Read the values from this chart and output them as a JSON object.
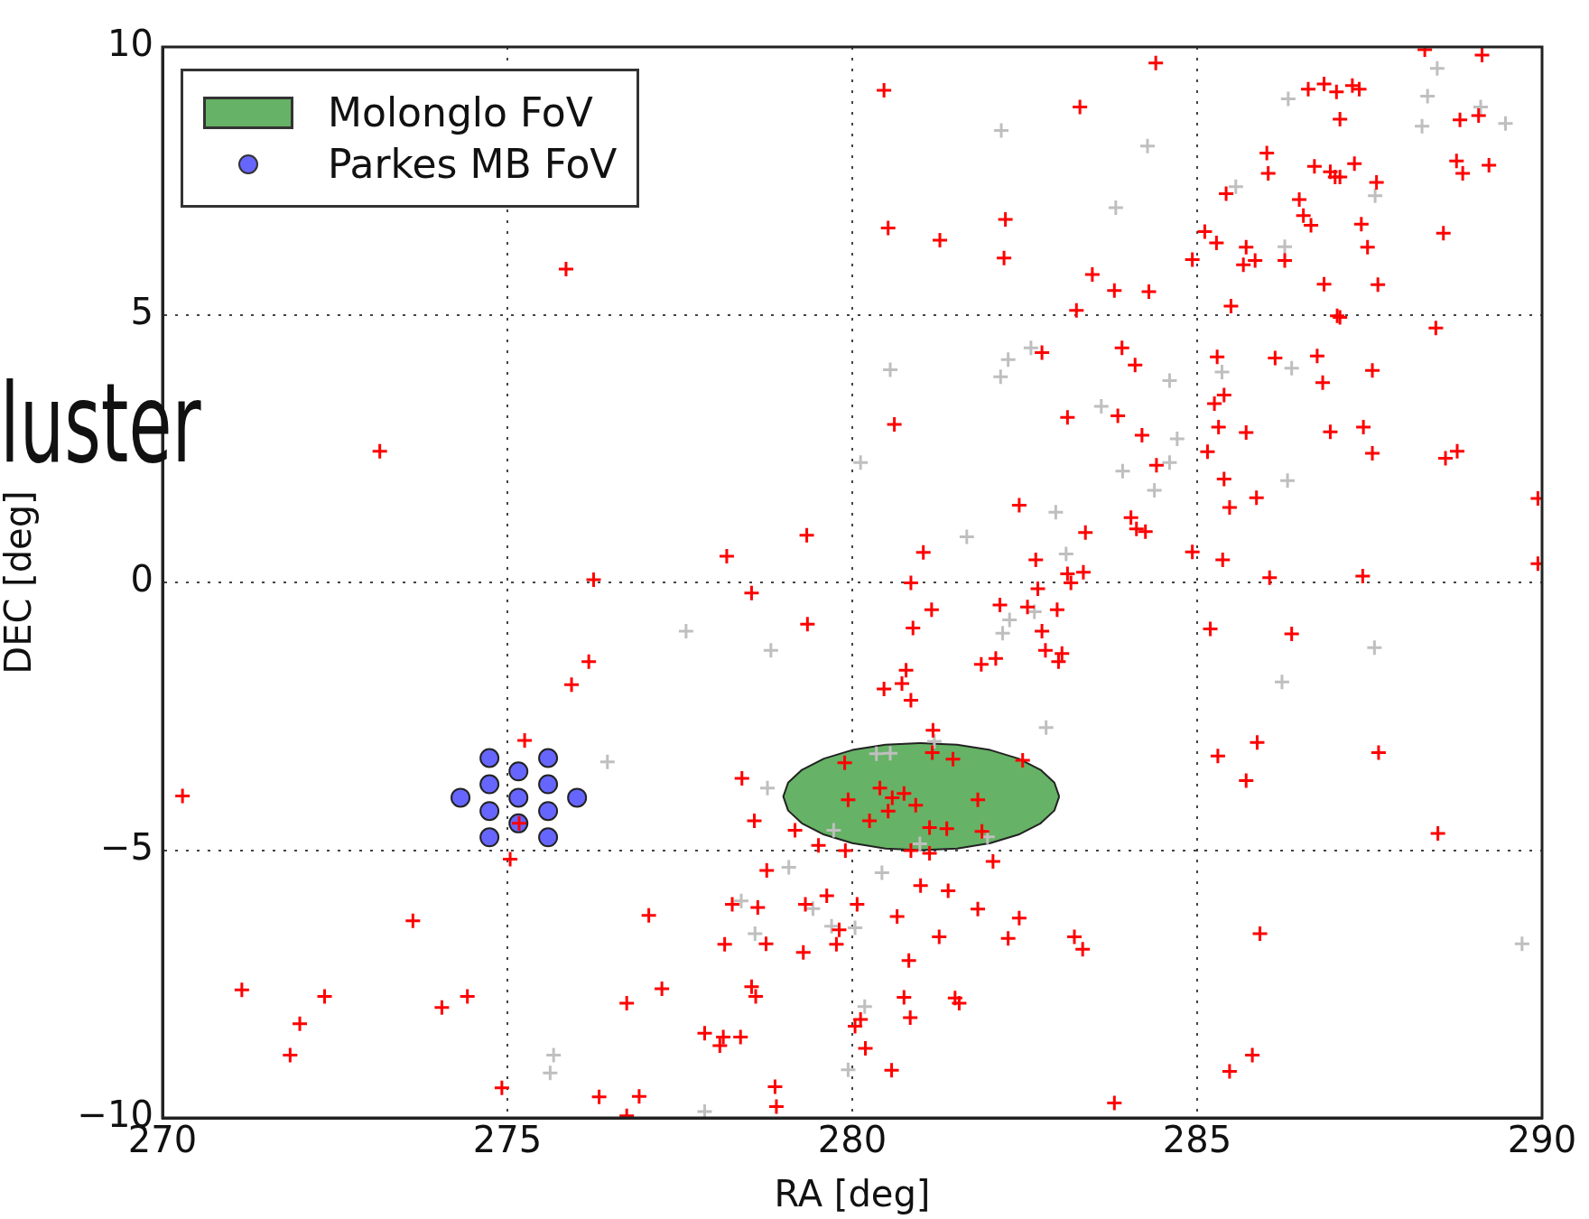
{
  "chart_data": {
    "type": "scatter",
    "xlabel": "RA [deg]",
    "ylabel": "DEC [deg]",
    "annotations": [
      "luster"
    ],
    "xlim": [
      270,
      290
    ],
    "xticks": [
      270,
      275,
      280,
      285,
      290
    ],
    "ylim": [
      -10,
      10
    ],
    "yticks": [
      {
        "value": -10,
        "label": "−10"
      },
      {
        "value": -5,
        "label": "−5"
      },
      0,
      5,
      10
    ],
    "grid": true,
    "legend": "top left",
    "marker": "cross",
    "series": [
      {
        "color": "#ff0000",
        "x": [
          280.46,
          283.3,
          284.4,
          280.52,
          281.27,
          282.22,
          282.2,
          275.85,
          273.15,
          280.61,
          283.25,
          283.48,
          283.8,
          284.3,
          282.75,
          283.12,
          282.42,
          279.34,
          278.18,
          281.03,
          282.66,
          280.85,
          283.12,
          283.17,
          286.61,
          286.84,
          287.02,
          287.25,
          287.35,
          287.07,
          289.13,
          288.3,
          288.81,
          289.08,
          288.76,
          288.85,
          289.23,
          286.01,
          286.03,
          286.7,
          286.93,
          287.0,
          287.07,
          287.28,
          287.6,
          285.42,
          286.48,
          286.54,
          286.65,
          287.38,
          287.47,
          288.57,
          285.11,
          285.28,
          285.71,
          285.67,
          285.84,
          286.27,
          284.93,
          286.84,
          287.62,
          285.49,
          287.03,
          287.07,
          288.46,
          283.91,
          284.1,
          283.85,
          284.2,
          284.41,
          285.29,
          286.13,
          286.74,
          287.54,
          286.82,
          285.39,
          285.25,
          285.31,
          285.71,
          286.93,
          287.41,
          287.54,
          285.15,
          288.6,
          288.77,
          285.39,
          285.47,
          285.86,
          289.94,
          283.38,
          284.04,
          284.12,
          284.25,
          284.93,
          285.37,
          286.05,
          287.4,
          283.35,
          289.94,
          276.25,
          276.18,
          275.93,
          275.25,
          275.17,
          275.04,
          270.29,
          273.63,
          271.15,
          271.99,
          272.35,
          271.85,
          274.05,
          274.42,
          274.92,
          276.33,
          278.54,
          279.35,
          281.15,
          280.88,
          282.14,
          282.54,
          282.97,
          282.69,
          282.75,
          282.8,
          283.04,
          282.99,
          281.87,
          282.08,
          280.78,
          280.72,
          280.46,
          280.85,
          281.17,
          282.47,
          278.4,
          278.58,
          279.17,
          279.51,
          279.9,
          280.85,
          281.12,
          282.04,
          278.76,
          278.26,
          278.63,
          279.32,
          279.63,
          280.07,
          280.99,
          281.39,
          281.82,
          282.42,
          280.65,
          277.05,
          279.81,
          278.15,
          278.75,
          279.29,
          279.77,
          281.26,
          282.26,
          283.22,
          280.82,
          277.24,
          276.73,
          278.54,
          278.6,
          280.75,
          281.49,
          281.55,
          280.84,
          280.12,
          280.04,
          280.19,
          280.57,
          277.86,
          278.13,
          278.08,
          278.38,
          278.88,
          278.9,
          276.91,
          276.73,
          279.89,
          279.94,
          280.4,
          280.58,
          280.75,
          280.92,
          280.52,
          280.25,
          281.16,
          281.46,
          281.82,
          281.12,
          281.37,
          281.88,
          285.19,
          286.37,
          285.87,
          285.3,
          285.71,
          287.63,
          288.49,
          285.91,
          285.8,
          285.47,
          283.8,
          283.34
        ],
        "values": [
          9.19,
          8.88,
          9.7,
          6.62,
          6.39,
          6.78,
          6.06,
          5.85,
          2.45,
          2.95,
          5.08,
          5.75,
          5.45,
          5.43,
          4.29,
          3.08,
          1.44,
          0.88,
          0.49,
          0.56,
          0.42,
          -0.01,
          0.16,
          -0.01,
          9.21,
          9.31,
          9.16,
          9.28,
          9.21,
          8.65,
          9.85,
          9.95,
          8.64,
          8.72,
          7.87,
          7.64,
          7.79,
          8.02,
          7.64,
          7.77,
          7.67,
          7.57,
          7.57,
          7.82,
          7.47,
          7.26,
          7.15,
          6.85,
          6.67,
          6.69,
          6.26,
          6.52,
          6.55,
          6.34,
          6.26,
          5.93,
          6.01,
          6.01,
          6.03,
          5.57,
          5.56,
          5.16,
          4.98,
          4.95,
          4.75,
          4.38,
          4.06,
          3.11,
          2.75,
          2.19,
          4.21,
          4.19,
          4.23,
          3.96,
          3.73,
          3.5,
          3.34,
          2.9,
          2.8,
          2.81,
          2.9,
          2.41,
          2.44,
          2.32,
          2.45,
          1.93,
          1.4,
          1.58,
          1.57,
          0.93,
          1.21,
          1.0,
          0.95,
          0.57,
          0.42,
          0.09,
          0.12,
          0.19,
          0.35,
          0.05,
          -1.48,
          -1.91,
          -2.95,
          -4.5,
          -5.17,
          -3.99,
          -6.32,
          -7.61,
          -8.24,
          -7.73,
          -8.83,
          -7.94,
          -7.73,
          -9.44,
          -9.61,
          -0.2,
          -0.78,
          -0.51,
          -0.85,
          -0.42,
          -0.46,
          -0.51,
          -0.12,
          -0.91,
          -1.27,
          -1.33,
          -1.48,
          -1.53,
          -1.42,
          -1.64,
          -1.89,
          -1.99,
          -2.2,
          -2.76,
          -3.32,
          -3.66,
          -4.45,
          -4.63,
          -4.91,
          -5.01,
          -5.01,
          -5.06,
          -5.21,
          -5.38,
          -6.01,
          -6.07,
          -6.01,
          -5.85,
          -6.01,
          -5.66,
          -5.76,
          -6.1,
          -6.27,
          -6.24,
          -6.22,
          -6.49,
          -6.76,
          -6.75,
          -6.91,
          -6.76,
          -6.62,
          -6.65,
          -6.62,
          -7.06,
          -7.59,
          -7.86,
          -7.55,
          -7.73,
          -7.75,
          -7.76,
          -7.86,
          -8.13,
          -8.16,
          -8.29,
          -8.7,
          -9.11,
          -8.42,
          -8.49,
          -8.65,
          -8.49,
          -9.42,
          -9.79,
          -9.6,
          -9.96,
          -3.37,
          -4.06,
          -3.84,
          -4.02,
          -3.94,
          -4.16,
          -4.27,
          -4.45,
          -3.18,
          -3.3,
          -4.06,
          -4.58,
          -4.6,
          -4.65,
          -0.87,
          -0.96,
          -2.99,
          -3.24,
          -3.7,
          -3.18,
          -4.69,
          -6.56,
          -8.83,
          -9.13,
          -9.72,
          -6.85
        ]
      },
      {
        "color": "#bfbfbf",
        "x": [
          282.16,
          280.55,
          282.26,
          282.15,
          282.59,
          280.12,
          282.95,
          281.66,
          283.1,
          288.48,
          288.34,
          286.32,
          288.26,
          289.11,
          289.47,
          287.58,
          285.56,
          284.28,
          283.82,
          286.27,
          285.36,
          286.37,
          284.6,
          283.61,
          284.71,
          284.6,
          283.92,
          284.38,
          286.31,
          276.45,
          275.67,
          275.62,
          277.59,
          278.82,
          282.28,
          282.18,
          282.64,
          282.81,
          281.19,
          280.35,
          280.55,
          278.77,
          279.73,
          280.98,
          281.96,
          279.08,
          280.43,
          278.39,
          279.43,
          278.59,
          279.7,
          280.04,
          280.18,
          279.94,
          277.86,
          287.57,
          286.23,
          289.71
        ],
        "values": [
          8.44,
          3.97,
          4.16,
          3.84,
          4.38,
          2.24,
          1.31,
          0.85,
          0.53,
          9.6,
          9.08,
          9.03,
          8.52,
          8.88,
          8.57,
          7.22,
          7.39,
          8.15,
          7.0,
          6.27,
          3.93,
          4.0,
          3.77,
          3.29,
          2.68,
          2.24,
          2.08,
          1.72,
          1.9,
          -3.35,
          -8.83,
          -9.16,
          -0.91,
          -1.27,
          -0.7,
          -0.95,
          -0.55,
          -2.71,
          -2.97,
          -3.2,
          -3.19,
          -3.84,
          -4.63,
          -4.88,
          -4.75,
          -5.32,
          -5.42,
          -5.95,
          -6.09,
          -6.56,
          -6.42,
          -6.45,
          -7.92,
          -9.1,
          -9.88,
          -1.22,
          -1.86,
          -6.75
        ]
      },
      {
        "type": "area",
        "name": "Molonglo FoV",
        "color": "#66b266",
        "marker": "none",
        "x": [
          283,
          282.93,
          282.73,
          282.41,
          282,
          281.52,
          281,
          280.48,
          280,
          279.59,
          279.27,
          279.07,
          279,
          279.07,
          279.27,
          279.59,
          280,
          280.48,
          281,
          281.52,
          282,
          282.41,
          282.73,
          282.93,
          283
        ],
        "values": [
          -4,
          -3.74,
          -3.5,
          -3.29,
          -3.13,
          -3.03,
          -3,
          -3.03,
          -3.13,
          -3.29,
          -3.5,
          -3.74,
          -4,
          -4.26,
          -4.5,
          -4.71,
          -4.87,
          -4.97,
          -5,
          -4.97,
          -4.87,
          -4.71,
          -4.5,
          -4.26,
          -4
        ]
      },
      {
        "name": "Parkes MB FoV",
        "color": "#6666ff",
        "marker": "circle",
        "x": [
          274.74,
          275.59,
          275.16,
          274.74,
          275.59,
          274.32,
          275.16,
          276.01,
          274.74,
          275.59,
          275.16,
          274.74,
          275.59
        ],
        "values": [
          -3.28,
          -3.28,
          -3.53,
          -3.77,
          -3.77,
          -4.02,
          -4.02,
          -4.02,
          -4.27,
          -4.27,
          -4.5,
          -4.76,
          -4.76
        ]
      }
    ]
  }
}
